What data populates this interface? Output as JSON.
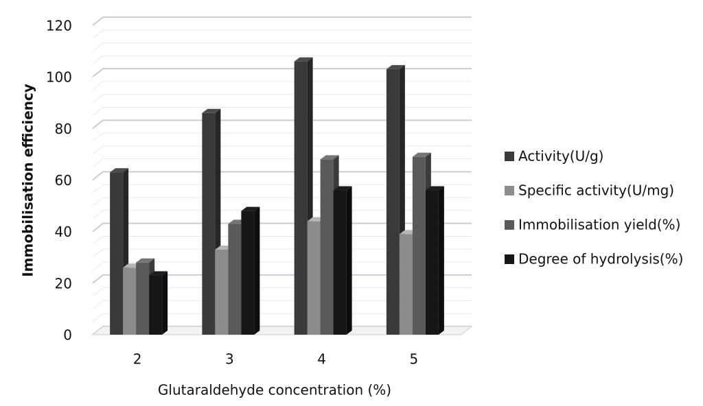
{
  "chart_data": {
    "type": "bar3d",
    "x_label": "Glutaraldehyde concentration (%)",
    "y_label": "Immobilisation efficiency",
    "categories": [
      "2",
      "3",
      "4",
      "5"
    ],
    "series": [
      {
        "name": "Activity(U/g)",
        "color": "#3a3a3a",
        "values": [
          63,
          86,
          106,
          103
        ]
      },
      {
        "name": "Specific activity(U/mg)",
        "color": "#8c8c8c",
        "values": [
          26,
          33,
          44,
          39
        ]
      },
      {
        "name": "Immobilisation yield(%)",
        "color": "#5a5a5a",
        "values": [
          28,
          43,
          68,
          69
        ]
      },
      {
        "name": "Degree of hydrolysis(%)",
        "color": "#161616",
        "values": [
          23,
          48,
          56,
          56
        ]
      }
    ],
    "ylim": [
      0,
      120
    ],
    "yticks": [
      0,
      20,
      40,
      60,
      80,
      100,
      120
    ],
    "grid": true,
    "legend": "right"
  }
}
